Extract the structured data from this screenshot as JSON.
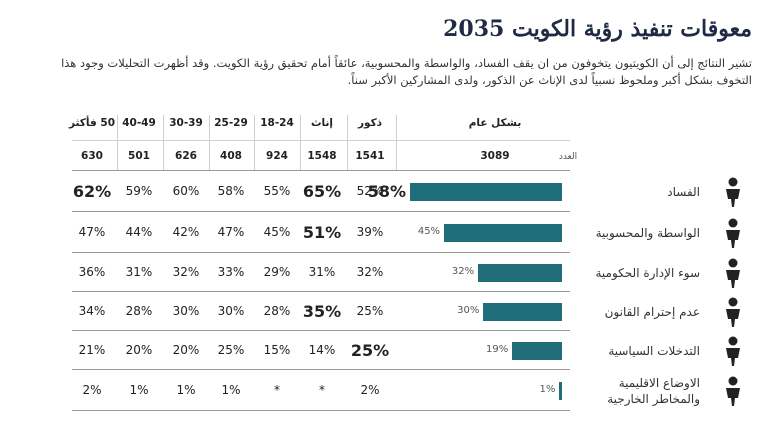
{
  "title": "معوقات تنفيذ رؤية الكويت 2035",
  "subtitle_line1": "تشير النتائج إلى أن الكويتيون يتخوفون من ان يقف الفساد، والواسطة والمحسوبية، عائقاً أمام تحقيق رؤية الكويت. وقد أظهرت التحليلات وجود هذا",
  "subtitle_line2": "التخوف بشكل أكبر وملحوظ نسبياً لدى الإناث عن الذكور، ولدى المشاركين الأكبر سناً.",
  "count_label": "العدد",
  "overall_header": "بشكل عام",
  "overall_count": "3089",
  "chart_data": {
    "type": "table",
    "columns": [
      {
        "label": "ذكور",
        "count": "1541"
      },
      {
        "label": "إناث",
        "count": "1548"
      },
      {
        "label": "18-24",
        "count": "924"
      },
      {
        "label": "25-29",
        "count": "408"
      },
      {
        "label": "30-39",
        "count": "626"
      },
      {
        "label": "40-49",
        "count": "501"
      },
      {
        "label": "50 فأكثر",
        "count": "630"
      }
    ],
    "rows": [
      {
        "label": "الفساد",
        "overall": 58,
        "overall_label": "58%",
        "overall_big": true,
        "values": [
          "52%",
          "65%",
          "55%",
          "58%",
          "60%",
          "59%",
          "62%"
        ],
        "bold": [
          1,
          6
        ],
        "icon": "people-table-icon"
      },
      {
        "label": "الواسطة والمحسوبية",
        "overall": 45,
        "overall_label": "45%",
        "overall_big": false,
        "values": [
          "39%",
          "51%",
          "45%",
          "47%",
          "42%",
          "44%",
          "47%"
        ],
        "bold": [
          1
        ],
        "icon": "person-briefcase-icon"
      },
      {
        "label": "سوء الإدارة الحكومية",
        "overall": 32,
        "overall_label": "32%",
        "overall_big": false,
        "values": [
          "32%",
          "31%",
          "29%",
          "33%",
          "32%",
          "31%",
          "36%"
        ],
        "bold": [],
        "icon": "stressed-person-icon"
      },
      {
        "label": "عدم إحترام القانون",
        "overall": 30,
        "overall_label": "30%",
        "overall_big": false,
        "values": [
          "25%",
          "35%",
          "28%",
          "30%",
          "30%",
          "28%",
          "34%"
        ],
        "bold": [
          1
        ],
        "icon": "hammer-person-icon"
      },
      {
        "label": "التدخلات السياسية",
        "overall": 19,
        "overall_label": "19%",
        "overall_big": false,
        "values": [
          "25%",
          "14%",
          "15%",
          "25%",
          "20%",
          "20%",
          "21%"
        ],
        "bold": [
          0
        ],
        "icon": "podium-speaker-icon"
      },
      {
        "label": "الاوضاع الاقليمية والمخاطر الخارجية",
        "overall": 1,
        "overall_label": "1%",
        "overall_big": false,
        "values": [
          "2%",
          "*",
          "*",
          "1%",
          "1%",
          "1%",
          "2%"
        ],
        "bold": [],
        "icon": "fighter-icon"
      }
    ],
    "accent_color": "#1f6e7a"
  }
}
